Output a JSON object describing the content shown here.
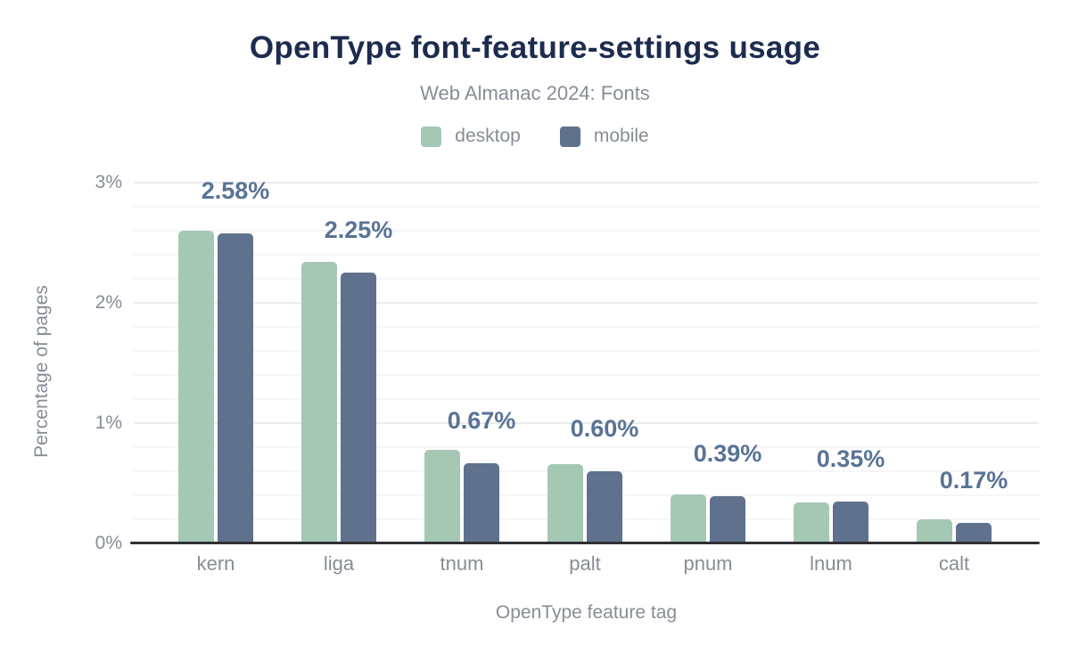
{
  "chart_data": {
    "type": "bar",
    "title": "OpenType font-feature-settings usage",
    "subtitle": "Web Almanac 2024: Fonts",
    "xlabel": "OpenType feature tag",
    "ylabel": "Percentage of pages",
    "categories": [
      "kern",
      "liga",
      "tnum",
      "palt",
      "pnum",
      "lnum",
      "calt"
    ],
    "series": [
      {
        "name": "desktop",
        "color": "#a5c8b4",
        "values": [
          2.6,
          2.34,
          0.78,
          0.66,
          0.41,
          0.34,
          0.2
        ]
      },
      {
        "name": "mobile",
        "color": "#5f718c",
        "values": [
          2.58,
          2.25,
          0.67,
          0.6,
          0.39,
          0.35,
          0.17
        ]
      }
    ],
    "bar_labels": [
      "2.58%",
      "2.25%",
      "0.67%",
      "0.60%",
      "0.39%",
      "0.35%",
      "0.17%"
    ],
    "bar_labels_series": "mobile",
    "ylim": [
      0,
      3.07
    ],
    "yticks": [
      0,
      1,
      2,
      3
    ],
    "ytick_labels": [
      "0%",
      "1%",
      "2%",
      "3%"
    ],
    "grid": {
      "major_step": 1.0,
      "minor_step": 0.2,
      "visible": true
    },
    "legend_position": "top"
  },
  "colors": {
    "title": "#1c2b4e",
    "muted_text": "#878d96",
    "value_label": "#5a7396",
    "axis_line": "#303034",
    "grid_minor": "#f6f6f6",
    "grid_major": "#ececec",
    "background": "#ffffff"
  }
}
